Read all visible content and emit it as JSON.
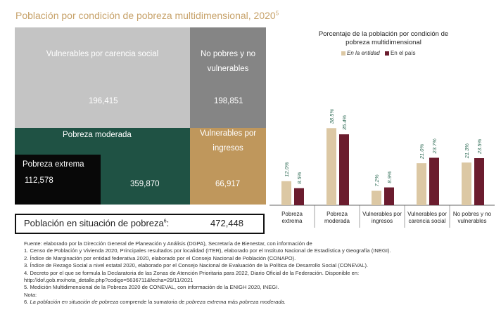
{
  "title": "Población por condición de pobreza multidimensional, 2020",
  "title_sup": "5",
  "treemap": {
    "vulnerables_carencia": {
      "label": "Vulnerables por carencia social",
      "value": "196,415",
      "color": "#c4c4c4"
    },
    "no_pobres": {
      "label_line1": "No pobres y no",
      "label_line2": "vulnerables",
      "value": "198,851",
      "color": "#858585"
    },
    "pobreza_moderada": {
      "label": "Pobreza moderada",
      "value": "359,870",
      "color": "#1f5244"
    },
    "pobreza_extrema": {
      "label": "Pobreza extrema",
      "value": "112,578",
      "color": "#080808"
    },
    "vulnerables_ingresos": {
      "label_line1": "Vulnerables por",
      "label_line2": "ingresos",
      "value": "66,917",
      "color": "#bf975c"
    }
  },
  "summary": {
    "label": "Población en situación de pobreza",
    "sup": "6",
    "colon": ":",
    "value": "472,448"
  },
  "chart_data": {
    "type": "bar",
    "title": "Porcentaje de la población por condición de pobreza multidimensional",
    "title_line1": "Porcentaje de la población por condición de",
    "title_line2": "pobreza multidimensional",
    "categories": [
      "Pobreza extrema",
      "Pobreza moderada",
      "Vulnerables por ingresos",
      "Vulnerables por carencia social",
      "No pobres y no vulnerables"
    ],
    "category_lines": [
      [
        "Pobreza",
        "extrema"
      ],
      [
        "Pobreza",
        "moderada"
      ],
      [
        "Vulnerables por",
        "ingresos"
      ],
      [
        "Vulnerables por",
        "carencia social"
      ],
      [
        "No pobres y no",
        "vulnerables"
      ]
    ],
    "series": [
      {
        "name": "En la entidad",
        "values": [
          12.0,
          38.5,
          7.2,
          21.0,
          21.3
        ],
        "labels": [
          "12.0%",
          "38.5%",
          "7.2%",
          "21.0%",
          "21.3%"
        ],
        "color": "#dcc8a4"
      },
      {
        "name": "En el país",
        "values": [
          8.5,
          35.4,
          8.9,
          23.7,
          23.5
        ],
        "labels": [
          "8.5%",
          "35.4%",
          "8.9%",
          "23.7%",
          "23.5%"
        ],
        "color": "#6b1c2e"
      }
    ],
    "ylim": [
      0,
      45
    ],
    "legend": "top"
  },
  "notes": {
    "fuente": "Fuente: elaborado por la Dirección General de Planeación y Análisis (DGPA), Secretaría de Bienestar, con información de",
    "n1": "1. Censo de Población y Vivienda 2020, Principales resultados por localidad (ITER), elaborado por el Instituto Nacional de Estadística y Geografía (INEGI).",
    "n2": "2. Índice de Marginación por entidad federativa 2020, elaborado por el Consejo Nacional de Población (CONAPO).",
    "n3": "3. Índice de Rezago Social a nivel estatal 2020, elaborado por el Consejo Nacional de Evaluación de la Política de Desarrollo Social (CONEVAL).",
    "n4a": "4. Decreto por el que se formula la Declaratoria de las Zonas de Atención Prioritaria para 2022, Diario Oficial de la Federación. Disponible en:",
    "n4b": "http://dof.gob.mx/nota_detalle.php?codigo=5636711&fecha=29/11/2021",
    "n5": "5. Medición Multidimensional de la Pobreza 2020 de CONEVAL, con información de la ENIGH 2020, INEGI.",
    "nota": "Nota:",
    "n6_prefix": "6. ",
    "n6_i1": "La población en situación de pobreza",
    "n6_m1": " comprende la sumatoria de ",
    "n6_i2": "pobreza extrema",
    "n6_m2": " más ",
    "n6_i3": "pobreza moderada."
  }
}
